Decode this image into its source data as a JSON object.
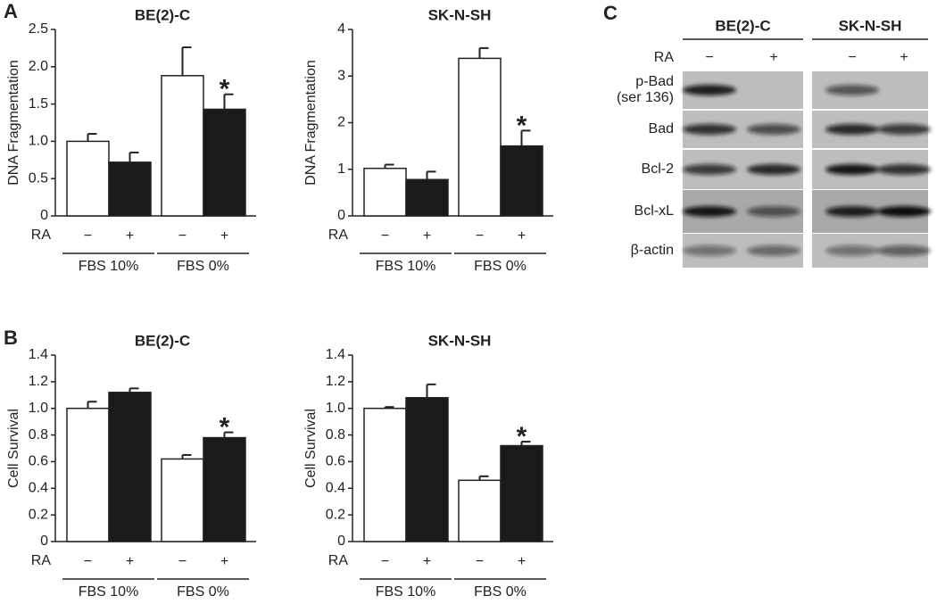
{
  "panel_labels": [
    "A",
    "B",
    "C"
  ],
  "chart_data": [
    {
      "type": "bar",
      "title": "BE(2)-C",
      "ylabel": "DNA Fragmentation",
      "x_row_label": "RA",
      "categories": [
        "−",
        "+",
        "−",
        "+"
      ],
      "groups": [
        "FBS 10%",
        "FBS 0%"
      ],
      "values": [
        1.0,
        0.72,
        1.88,
        1.43
      ],
      "errors": [
        0.1,
        0.13,
        0.38,
        0.2
      ],
      "value_annotations": [
        null,
        null,
        null,
        "*"
      ],
      "colors": [
        "#ffffff",
        "#1a1a1a",
        "#ffffff",
        "#1a1a1a"
      ],
      "ylim": [
        0,
        2.5
      ],
      "yticks": [
        0,
        0.5,
        {
          "value": 1,
          "label": "1.0"
        },
        1.5,
        {
          "value": 2,
          "label": "2.0"
        },
        2.5
      ]
    },
    {
      "type": "bar",
      "title": "SK-N-SH",
      "ylabel": "DNA Fragmentation",
      "x_row_label": "RA",
      "categories": [
        "−",
        "+",
        "−",
        "+"
      ],
      "groups": [
        "FBS 10%",
        "FBS 0%"
      ],
      "values": [
        1.02,
        0.78,
        3.38,
        1.5
      ],
      "errors": [
        0.08,
        0.17,
        0.22,
        0.33
      ],
      "value_annotations": [
        null,
        null,
        null,
        "*"
      ],
      "colors": [
        "#ffffff",
        "#1a1a1a",
        "#ffffff",
        "#1a1a1a"
      ],
      "ylim": [
        0,
        4
      ],
      "yticks": [
        0,
        1,
        2,
        3,
        4
      ]
    },
    {
      "type": "bar",
      "title": "BE(2)-C",
      "ylabel": "Cell Survival",
      "x_row_label": "RA",
      "categories": [
        "−",
        "+",
        "−",
        "+"
      ],
      "groups": [
        "FBS 10%",
        "FBS 0%"
      ],
      "values": [
        1.0,
        1.12,
        0.62,
        0.78
      ],
      "errors": [
        0.05,
        0.03,
        0.03,
        0.04
      ],
      "value_annotations": [
        null,
        null,
        null,
        "*"
      ],
      "colors": [
        "#ffffff",
        "#1a1a1a",
        "#ffffff",
        "#1a1a1a"
      ],
      "ylim": [
        0,
        1.4
      ],
      "yticks": [
        0,
        0.2,
        0.4,
        0.6,
        0.8,
        {
          "value": 1,
          "label": "1.0"
        },
        1.2,
        1.4
      ]
    },
    {
      "type": "bar",
      "title": "SK-N-SH",
      "ylabel": "Cell Survival",
      "x_row_label": "RA",
      "categories": [
        "−",
        "+",
        "−",
        "+"
      ],
      "groups": [
        "FBS 10%",
        "FBS 0%"
      ],
      "values": [
        1.0,
        1.08,
        0.46,
        0.72
      ],
      "errors": [
        0.01,
        0.1,
        0.03,
        0.03
      ],
      "value_annotations": [
        null,
        null,
        null,
        "*"
      ],
      "colors": [
        "#ffffff",
        "#1a1a1a",
        "#ffffff",
        "#1a1a1a"
      ],
      "ylim": [
        0,
        1.4
      ],
      "yticks": [
        0,
        0.2,
        0.4,
        0.6,
        0.8,
        {
          "value": 1,
          "label": "1.0"
        },
        1.2,
        1.4
      ]
    }
  ],
  "blot": {
    "groups": [
      "BE(2)-C",
      "SK-N-SH"
    ],
    "row_label": "RA",
    "lanes": [
      "−",
      "+",
      "−",
      "+"
    ],
    "rows": [
      [
        "p-Bad",
        "(ser 136)"
      ],
      [
        "Bad"
      ],
      [
        "Bcl-2"
      ],
      [
        "Bcl-xL"
      ],
      [
        "β-actin"
      ]
    ]
  }
}
